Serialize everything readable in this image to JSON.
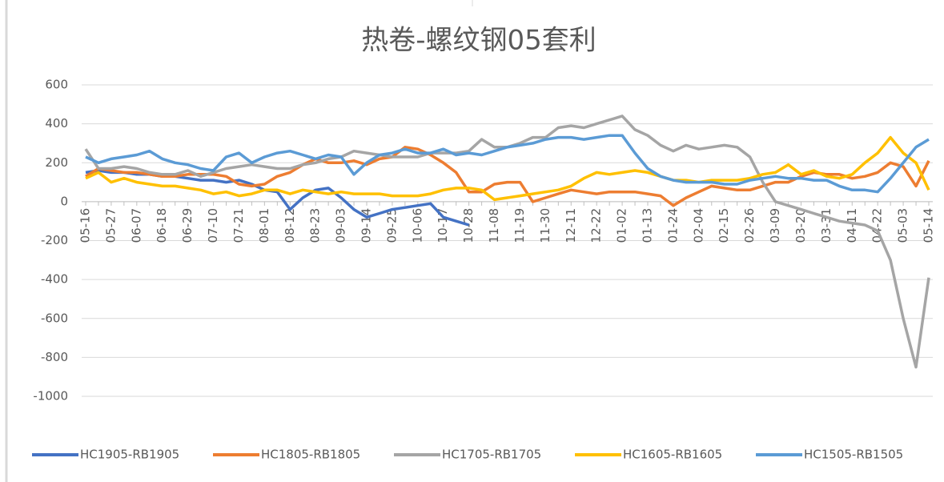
{
  "chart_data": {
    "type": "line",
    "title": "热卷-螺纹钢05套利",
    "categories": [
      "05-16",
      null,
      "05-27",
      null,
      "06-07",
      null,
      "06-18",
      null,
      "06-29",
      null,
      "07-10",
      null,
      "07-21",
      null,
      "08-01",
      null,
      "08-12",
      null,
      "08-23",
      null,
      "09-03",
      null,
      "09-14",
      null,
      "09-25",
      null,
      "10-06",
      null,
      "10-17",
      null,
      "10-28",
      null,
      "11-08",
      null,
      "11-19",
      null,
      "11-30",
      null,
      "12-11",
      null,
      "12-22",
      null,
      "01-02",
      null,
      "01-13",
      null,
      "01-24",
      null,
      "02-04",
      null,
      "02-15",
      null,
      "02-26",
      null,
      "03-09",
      null,
      "03-20",
      null,
      "03-31",
      null,
      "04-11",
      null,
      "04-22",
      null,
      "05-03",
      null,
      "05-14"
    ],
    "series": [
      {
        "name": "HC1905-RB1905",
        "color": "#4472c4",
        "values": [
          150,
          160,
          150,
          150,
          140,
          140,
          130,
          130,
          120,
          110,
          110,
          100,
          110,
          90,
          60,
          50,
          -40,
          20,
          60,
          70,
          20,
          -40,
          -80,
          -60,
          -40,
          -30,
          -20,
          -10,
          -80,
          -100,
          -120,
          null,
          null,
          null,
          null,
          null,
          null,
          null,
          null,
          null,
          null,
          null,
          null,
          null,
          null,
          null,
          null,
          null,
          null,
          null,
          null,
          null,
          null,
          null,
          null,
          null,
          null,
          null,
          null,
          null,
          null,
          null,
          null,
          null,
          null,
          null,
          null
        ]
      },
      {
        "name": "HC1805-RB1805",
        "color": "#ed7d31",
        "values": [
          130,
          170,
          160,
          150,
          150,
          140,
          130,
          130,
          140,
          140,
          140,
          130,
          90,
          80,
          90,
          130,
          150,
          190,
          220,
          200,
          200,
          210,
          190,
          220,
          230,
          280,
          270,
          240,
          200,
          150,
          50,
          50,
          90,
          100,
          100,
          0,
          20,
          40,
          60,
          50,
          40,
          50,
          50,
          50,
          40,
          30,
          -20,
          20,
          50,
          80,
          70,
          60,
          60,
          80,
          100,
          100,
          130,
          150,
          140,
          140,
          120,
          130,
          150,
          200,
          180,
          80,
          210
        ]
      },
      {
        "name": "HC1705-RB1705",
        "color": "#a5a5a5",
        "values": [
          270,
          170,
          170,
          180,
          170,
          150,
          140,
          140,
          160,
          130,
          150,
          170,
          180,
          190,
          180,
          170,
          170,
          190,
          200,
          220,
          230,
          260,
          250,
          240,
          230,
          230,
          230,
          250,
          250,
          250,
          260,
          320,
          280,
          280,
          300,
          330,
          330,
          380,
          390,
          380,
          400,
          420,
          440,
          370,
          340,
          290,
          260,
          290,
          270,
          280,
          290,
          280,
          230,
          100,
          0,
          -20,
          -40,
          -60,
          -80,
          -100,
          -110,
          -120,
          -150,
          -300,
          -600,
          -850,
          -390
        ]
      },
      {
        "name": "HC1605-RB1605",
        "color": "#ffc000",
        "values": [
          120,
          150,
          100,
          120,
          100,
          90,
          80,
          80,
          70,
          60,
          40,
          50,
          30,
          40,
          60,
          60,
          40,
          60,
          50,
          40,
          50,
          40,
          40,
          40,
          30,
          30,
          30,
          40,
          60,
          70,
          70,
          60,
          10,
          20,
          30,
          40,
          50,
          60,
          80,
          120,
          150,
          140,
          150,
          160,
          150,
          130,
          110,
          110,
          100,
          110,
          110,
          110,
          120,
          140,
          150,
          190,
          140,
          160,
          130,
          120,
          140,
          200,
          250,
          330,
          250,
          200,
          60
        ]
      },
      {
        "name": "HC1505-RB1505",
        "color": "#5b9bd5",
        "values": [
          230,
          200,
          220,
          230,
          240,
          260,
          220,
          200,
          190,
          170,
          160,
          230,
          250,
          200,
          230,
          250,
          260,
          240,
          220,
          240,
          230,
          140,
          200,
          240,
          250,
          270,
          250,
          250,
          270,
          240,
          250,
          240,
          260,
          280,
          290,
          300,
          320,
          330,
          330,
          320,
          330,
          340,
          340,
          250,
          170,
          130,
          110,
          100,
          100,
          100,
          90,
          90,
          110,
          120,
          130,
          120,
          120,
          110,
          110,
          80,
          60,
          60,
          50,
          120,
          200,
          280,
          320
        ]
      }
    ],
    "ylim": [
      -1000,
      600
    ],
    "yticks": [
      600,
      400,
      200,
      0,
      -200,
      -400,
      -600,
      -800,
      -1000
    ],
    "grid": true
  }
}
